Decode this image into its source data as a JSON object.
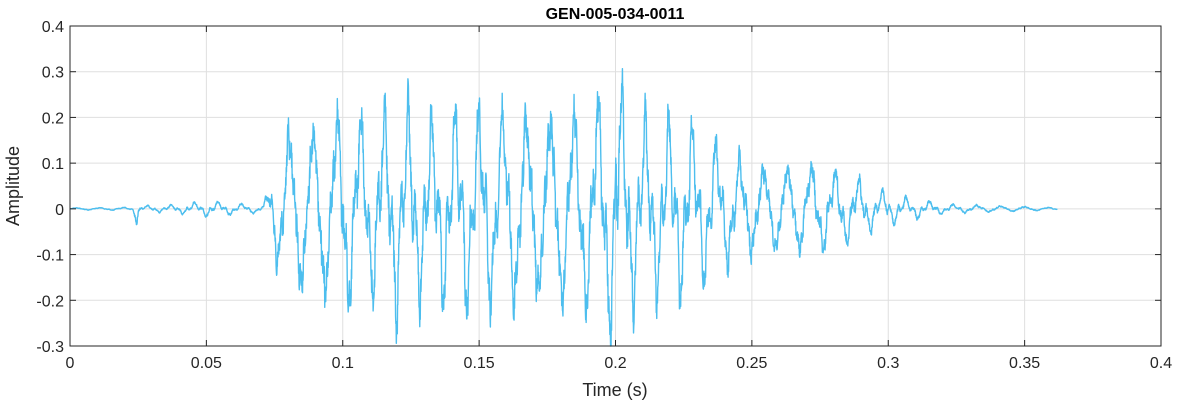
{
  "chart_data": {
    "type": "line",
    "title": "GEN-005-034-0011",
    "xlabel": "Time (s)",
    "ylabel": "Amplitude",
    "xlim": [
      0,
      0.4
    ],
    "ylim": [
      -0.3,
      0.4
    ],
    "grid": true,
    "xticks": [
      0,
      0.05,
      0.1,
      0.15,
      0.2,
      0.25,
      0.3,
      0.35,
      0.4
    ],
    "xtick_labels": [
      "0",
      "0.05",
      "0.1",
      "0.15",
      "0.2",
      "0.25",
      "0.3",
      "0.35",
      "0.4"
    ],
    "yticks": [
      -0.3,
      -0.2,
      -0.1,
      0,
      0.1,
      0.2,
      0.3,
      0.4
    ],
    "ytick_labels": [
      "-0.3",
      "-0.2",
      "-0.1",
      "0",
      "0.1",
      "0.2",
      "0.3",
      "0.4"
    ],
    "series": [
      {
        "color": "#4DBEEE",
        "duration": 0.362,
        "envelope": [
          [
            0.0,
            0.003
          ],
          [
            0.023,
            0.004
          ],
          [
            0.0245,
            0.04
          ],
          [
            0.026,
            0.008
          ],
          [
            0.035,
            0.008
          ],
          [
            0.05,
            0.018
          ],
          [
            0.065,
            0.012
          ],
          [
            0.071,
            0.01
          ],
          [
            0.073,
            0.07
          ],
          [
            0.076,
            0.17
          ],
          [
            0.08,
            0.24
          ],
          [
            0.09,
            0.25
          ],
          [
            0.1,
            0.29
          ],
          [
            0.11,
            0.23
          ],
          [
            0.12,
            0.28
          ],
          [
            0.13,
            0.22
          ],
          [
            0.15,
            0.27
          ],
          [
            0.16,
            0.27
          ],
          [
            0.175,
            0.28
          ],
          [
            0.185,
            0.28
          ],
          [
            0.2,
            0.33
          ],
          [
            0.21,
            0.22
          ],
          [
            0.225,
            0.22
          ],
          [
            0.24,
            0.16
          ],
          [
            0.255,
            0.12
          ],
          [
            0.27,
            0.13
          ],
          [
            0.285,
            0.09
          ],
          [
            0.295,
            0.05
          ],
          [
            0.305,
            0.03
          ],
          [
            0.32,
            0.012
          ],
          [
            0.345,
            0.008
          ],
          [
            0.362,
            0.003
          ]
        ]
      }
    ]
  }
}
